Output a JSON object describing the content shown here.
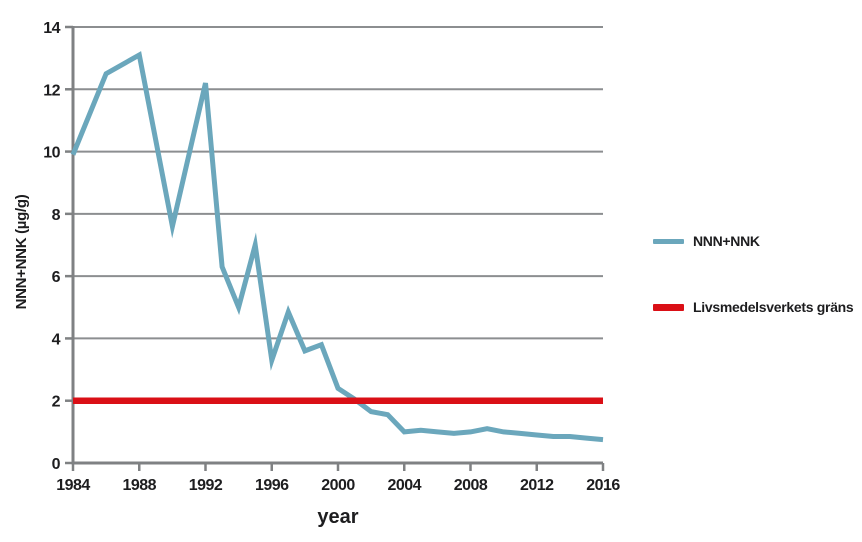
{
  "chart_data": {
    "type": "line",
    "title": "",
    "xlabel": "year",
    "ylabel": "NNN+NNK (µg/g)",
    "xlim": [
      1984,
      2016
    ],
    "ylim": [
      0,
      14
    ],
    "x_ticks": [
      1984,
      1988,
      1992,
      1996,
      2000,
      2004,
      2008,
      2012,
      2016
    ],
    "y_ticks": [
      0,
      2,
      4,
      6,
      8,
      10,
      12,
      14
    ],
    "grid": "horizontal gridlines every 2 units",
    "legend_position": "right of plot, outside",
    "series": [
      {
        "name": "NNN+NNK",
        "color": "#6BA7BC",
        "x": [
          1984,
          1986,
          1988,
          1990,
          1992,
          1993,
          1994,
          1995,
          1996,
          1997,
          1998,
          1999,
          2000,
          2001,
          2002,
          2003,
          2004,
          2005,
          2006,
          2007,
          2008,
          2009,
          2010,
          2011,
          2012,
          2013,
          2014,
          2015,
          2016
        ],
        "values": [
          9.9,
          12.5,
          13.1,
          7.6,
          12.2,
          6.3,
          5.0,
          7.0,
          3.3,
          4.85,
          3.6,
          3.8,
          2.4,
          2.05,
          1.65,
          1.55,
          1.0,
          1.05,
          1.0,
          0.95,
          1.0,
          1.1,
          1.0,
          0.95,
          0.9,
          0.85,
          0.85,
          0.8,
          0.75
        ]
      },
      {
        "name": "Livsmedelsverkets gräns",
        "color": "#DA0F16",
        "x": [
          1984,
          2016
        ],
        "values": [
          2,
          2
        ]
      }
    ]
  },
  "styles": {
    "background": "#FFFFFF",
    "grid_color": "#8C8E90",
    "axis_color": "#7F8183",
    "text_color": "#1D1D1F"
  }
}
